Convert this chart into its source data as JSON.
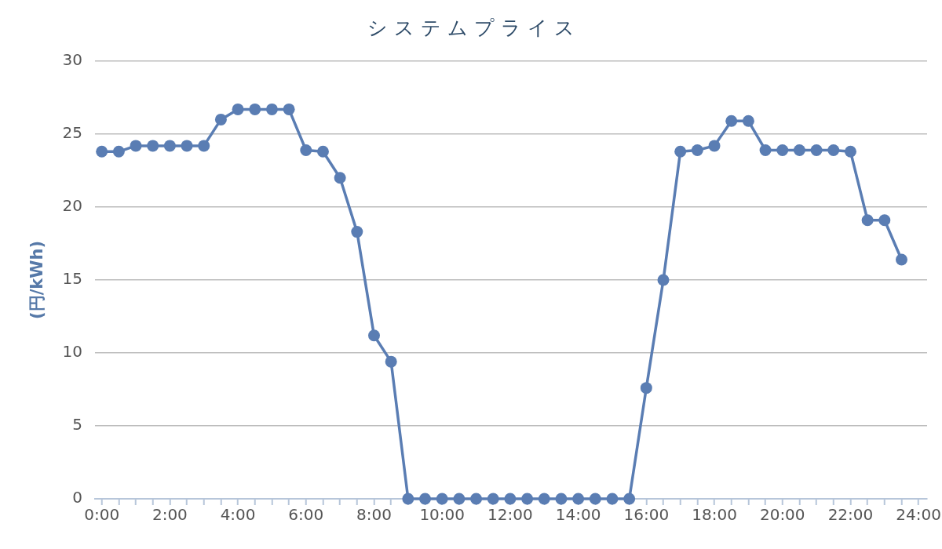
{
  "chart_data": {
    "type": "line",
    "title": "システムプライス",
    "ylabel": "(円/kWh)",
    "x": [
      0,
      0.5,
      1,
      1.5,
      2,
      2.5,
      3,
      3.5,
      4,
      4.5,
      5,
      5.5,
      6,
      6.5,
      7,
      7.5,
      8,
      8.5,
      9,
      9.5,
      10,
      10.5,
      11,
      11.5,
      12,
      12.5,
      13,
      13.5,
      14,
      14.5,
      15,
      15.5,
      16,
      16.5,
      17,
      17.5,
      18,
      18.5,
      19,
      19.5,
      20,
      20.5,
      21,
      21.5,
      22,
      22.5,
      23,
      23.5
    ],
    "series": [
      {
        "color": "#5a7db3",
        "values": [
          23.8,
          23.8,
          24.2,
          24.2,
          24.2,
          24.2,
          24.2,
          26,
          26.7,
          26.7,
          26.7,
          26.7,
          23.9,
          23.8,
          22,
          18.3,
          11.2,
          9.4,
          0,
          0,
          0,
          0,
          0,
          0,
          0,
          0,
          0,
          0,
          0,
          0,
          0,
          0,
          7.6,
          15,
          23.8,
          23.9,
          24.2,
          25.9,
          25.9,
          23.9,
          23.9,
          23.9,
          23.9,
          23.9,
          23.8,
          19.1,
          19.1,
          16.4
        ]
      }
    ],
    "xlim": [
      -0.2,
      24.25
    ],
    "xticks": [
      {
        "value": 0,
        "label": "0:00"
      },
      {
        "value": 0.5,
        "label": null
      },
      {
        "value": 1,
        "label": null
      },
      {
        "value": 1.5,
        "label": null
      },
      {
        "value": 2,
        "label": "2:00"
      },
      {
        "value": 2.5,
        "label": null
      },
      {
        "value": 3,
        "label": null
      },
      {
        "value": 3.5,
        "label": null
      },
      {
        "value": 4,
        "label": "4:00"
      },
      {
        "value": 4.5,
        "label": null
      },
      {
        "value": 5,
        "label": null
      },
      {
        "value": 5.5,
        "label": null
      },
      {
        "value": 6,
        "label": "6:00"
      },
      {
        "value": 6.5,
        "label": null
      },
      {
        "value": 7,
        "label": null
      },
      {
        "value": 7.5,
        "label": null
      },
      {
        "value": 8,
        "label": "8:00"
      },
      {
        "value": 8.5,
        "label": null
      },
      {
        "value": 9,
        "label": null
      },
      {
        "value": 9.5,
        "label": null
      },
      {
        "value": 10,
        "label": "10:00"
      },
      {
        "value": 10.5,
        "label": null
      },
      {
        "value": 11,
        "label": null
      },
      {
        "value": 11.5,
        "label": null
      },
      {
        "value": 12,
        "label": "12:00"
      },
      {
        "value": 12.5,
        "label": null
      },
      {
        "value": 13,
        "label": null
      },
      {
        "value": 13.5,
        "label": null
      },
      {
        "value": 14,
        "label": "14:00"
      },
      {
        "value": 14.5,
        "label": null
      },
      {
        "value": 15,
        "label": null
      },
      {
        "value": 15.5,
        "label": null
      },
      {
        "value": 16,
        "label": "16:00"
      },
      {
        "value": 16.5,
        "label": null
      },
      {
        "value": 17,
        "label": null
      },
      {
        "value": 17.5,
        "label": null
      },
      {
        "value": 18,
        "label": "18:00"
      },
      {
        "value": 18.5,
        "label": null
      },
      {
        "value": 19,
        "label": null
      },
      {
        "value": 19.5,
        "label": null
      },
      {
        "value": 20,
        "label": "20:00"
      },
      {
        "value": 20.5,
        "label": null
      },
      {
        "value": 21,
        "label": null
      },
      {
        "value": 21.5,
        "label": null
      },
      {
        "value": 22,
        "label": "22:00"
      },
      {
        "value": 22.5,
        "label": null
      },
      {
        "value": 23,
        "label": null
      },
      {
        "value": 23.5,
        "label": null
      },
      {
        "value": 24,
        "label": "24:00"
      }
    ],
    "ylim": [
      0,
      30
    ],
    "yticks": [
      0,
      5,
      10,
      15,
      20,
      25,
      30
    ],
    "grid": "y",
    "marker": "circle",
    "line_style": "solid"
  }
}
